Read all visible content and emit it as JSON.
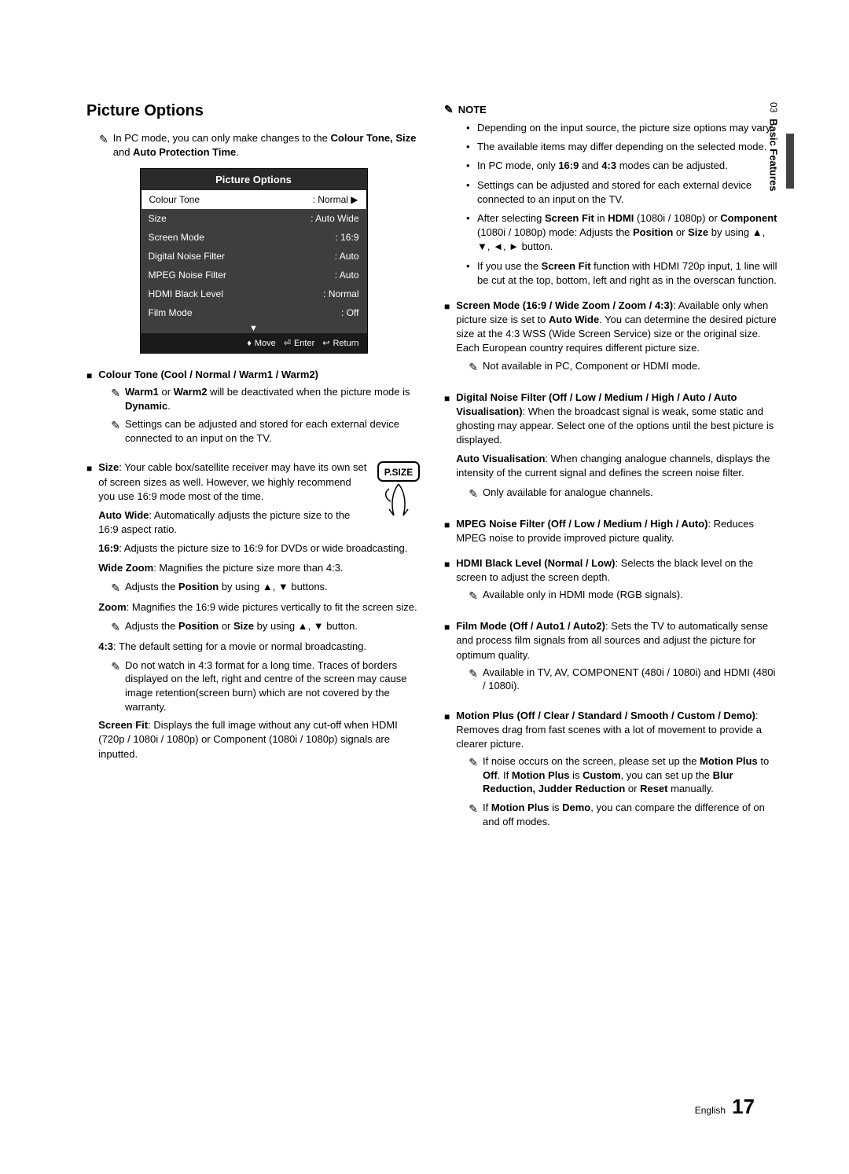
{
  "sideTab": {
    "chapter": "03",
    "title": "Basic Features"
  },
  "footer": {
    "lang": "English",
    "page": "17"
  },
  "left": {
    "heading": "Picture Options",
    "intro_pre": "In PC mode, you can only make changes to the ",
    "intro_bold": "Colour Tone, Size",
    "intro_mid": " and ",
    "intro_bold2": "Auto Protection Time",
    "intro_end": ".",
    "panel": {
      "title": "Picture Options",
      "rows": [
        {
          "label": "Colour Tone",
          "value": ": Normal",
          "selected": true,
          "arrow": "▶"
        },
        {
          "label": "Size",
          "value": ": Auto Wide"
        },
        {
          "label": "Screen Mode",
          "value": ": 16:9"
        },
        {
          "label": "Digital Noise Filter",
          "value": ": Auto"
        },
        {
          "label": "MPEG Noise Filter",
          "value": ": Auto"
        },
        {
          "label": "HDMI Black Level",
          "value": ": Normal"
        },
        {
          "label": "Film Mode",
          "value": ": Off"
        }
      ],
      "downArrow": "▼",
      "footer": {
        "move": "Move",
        "enter": "Enter",
        "return": "Return",
        "moveIco": "♦",
        "enterIco": "⏎",
        "returnIco": "↩"
      }
    },
    "colourTone": {
      "title": "Colour Tone (Cool / Normal / Warm1 / Warm2)",
      "note1_b1": "Warm1",
      "note1_mid": " or ",
      "note1_b2": "Warm2",
      "note1_rest": " will be deactivated when the picture mode is ",
      "note1_b3": "Dynamic",
      "note1_end": ".",
      "note2": "Settings can be adjusted and stored for each external device connected to an input on the TV."
    },
    "size": {
      "lead_b": "Size",
      "lead": ": Your cable box/satellite receiver may have its own set of screen sizes as well. However, we highly recommend you use 16:9 mode most of the time.",
      "psizeLabel": "P.SIZE",
      "autoWide_b": "Auto Wide",
      "autoWide": ": Automatically adjusts the picture size to the 16:9 aspect ratio.",
      "r169_b": "16:9",
      "r169": ": Adjusts the picture size to 16:9 for DVDs or wide broadcasting.",
      "wideZoom_b": "Wide Zoom",
      "wideZoom": ": Magnifies the picture size more than 4:3.",
      "wideZoomHand_pre": "Adjusts the ",
      "wideZoomHand_b": "Position",
      "wideZoomHand_post": " by using ▲, ▼ buttons.",
      "zoom_b": "Zoom",
      "zoom": ": Magnifies the 16:9 wide pictures vertically to fit the screen size.",
      "zoomHand_pre": "Adjusts the ",
      "zoomHand_b1": "Position",
      "zoomHand_mid": " or ",
      "zoomHand_b2": "Size",
      "zoomHand_post": " by using ▲, ▼ button.",
      "r43_b": "4:3",
      "r43": ": The default setting for a movie or normal broadcasting.",
      "r43Hand": "Do not watch in 4:3 format for a long time. Traces of borders displayed on the left, right and centre of the screen may cause image retention(screen burn) which are not covered by the warranty.",
      "screenFit_b": "Screen Fit",
      "screenFit": ": Displays the full image without any cut-off when HDMI (720p / 1080i / 1080p) or Component (1080i / 1080p) signals are inputted."
    }
  },
  "right": {
    "noteLabel": "NOTE",
    "notes": [
      "Depending on the input source, the picture size options may vary.",
      "The available items may differ depending on the selected mode.",
      "In PC mode, only <b>16:9</b> and <b>4:3</b> modes can be adjusted.",
      "Settings can be adjusted and stored for each external device connected to an input on the TV.",
      "After selecting <b>Screen Fit</b> in <b>HDMI</b> (1080i / 1080p) or <b>Component</b> (1080i / 1080p) mode: Adjusts the <b>Position</b> or <b>Size</b> by using ▲, ▼, ◄, ► button.",
      "If you use the <b>Screen Fit</b> function with HDMI 720p input, 1 line will be cut at the top, bottom, left and right as in the overscan function."
    ],
    "screenMode": {
      "title": "Screen Mode (16:9 / Wide Zoom / Zoom / 4:3)",
      "body_pre": ": Available only when picture size is set to ",
      "body_b": "Auto Wide",
      "body_post": ". You can determine the desired picture size at the 4:3 WSS (Wide Screen Service) size or the original size. Each European country requires different picture size.",
      "hand": "Not available in PC, Component or HDMI mode."
    },
    "dnf": {
      "title": "Digital Noise Filter (Off / Low / Medium / High / Auto / Auto Visualisation)",
      "body": ": When the broadcast signal is weak, some static and ghosting may appear. Select one of the options until the best picture is displayed.",
      "av_b": "Auto Visualisation",
      "av": ": When changing analogue channels, displays the intensity of the current signal and defines the screen noise filter.",
      "hand": "Only available for analogue channels."
    },
    "mpeg": {
      "title": "MPEG Noise Filter (Off / Low / Medium / High / Auto)",
      "body": ": Reduces MPEG noise to provide improved picture quality."
    },
    "hdmi": {
      "title": "HDMI Black Level (Normal / Low)",
      "body": ": Selects the black level on the screen to adjust the screen depth.",
      "hand": "Available only in HDMI mode (RGB signals)."
    },
    "film": {
      "title": "Film Mode (Off / Auto1 / Auto2)",
      "body": ": Sets the TV to automatically sense and process film signals from all sources and adjust the picture for optimum quality.",
      "hand": "Available in TV, AV, COMPONENT (480i / 1080i) and HDMI (480i / 1080i)."
    },
    "motion": {
      "title": "Motion Plus (Off / Clear / Standard / Smooth / Custom / Demo)",
      "body": ": Removes drag from fast scenes with a lot of movement to provide a clearer picture.",
      "hand1_pre": "If noise occurs on the screen, please set up the ",
      "hand1_b1": "Motion Plus",
      "hand1_mid1": " to ",
      "hand1_b2": "Off",
      "hand1_mid2": ". If ",
      "hand1_b3": "Motion Plus",
      "hand1_mid3": " is ",
      "hand1_b4": "Custom",
      "hand1_mid4": ", you can set up the ",
      "hand1_b5": "Blur Reduction, Judder Reduction",
      "hand1_mid5": " or ",
      "hand1_b6": "Reset",
      "hand1_end": " manually.",
      "hand2_pre": "If ",
      "hand2_b1": "Motion Plus",
      "hand2_mid": " is ",
      "hand2_b2": "Demo",
      "hand2_end": ", you can compare the difference of on and off modes."
    }
  }
}
